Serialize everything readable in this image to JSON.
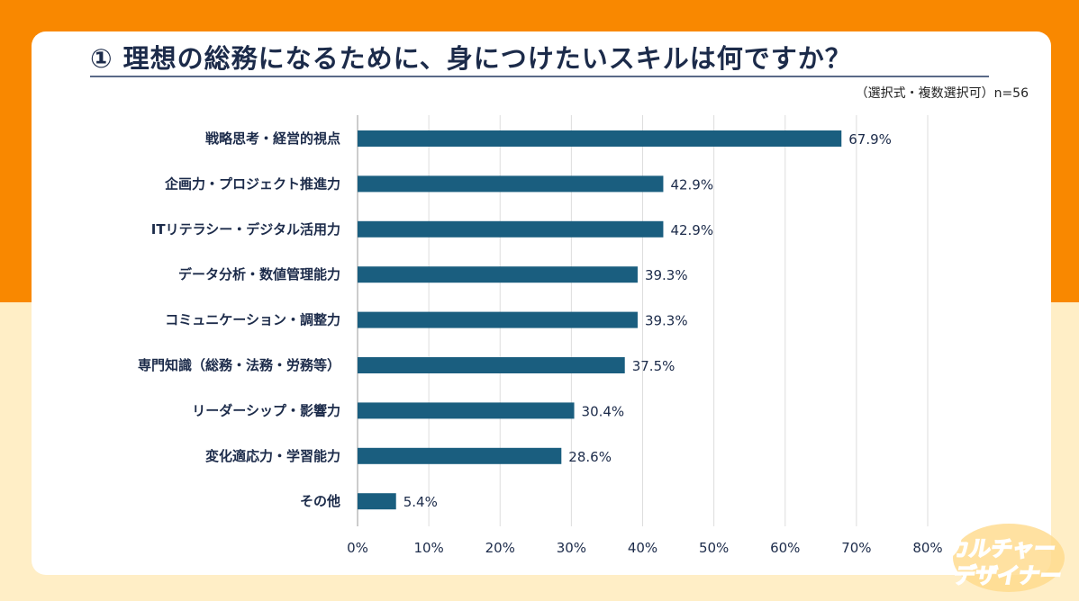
{
  "header": {
    "title": "① 理想の総務になるために、身につけたいスキルは何ですか？",
    "subtitle": "（選択式・複数選択可）n=56"
  },
  "logo": {
    "text": "カルチャーデザイナー"
  },
  "colors": {
    "bar": "#1A5E7F",
    "top_background": "#F98800",
    "bottom_background": "#FFEEC6"
  },
  "chart_data": {
    "type": "bar",
    "orientation": "horizontal",
    "categories": [
      "戦略思考・経営的視点",
      "企画力・プロジェクト推進力",
      "ITリテラシー・デジタル活用力",
      "データ分析・数値管理能力",
      "コミュニケーション・調整力",
      "専門知識（総務・法務・労務等）",
      "リーダーシップ・影響力",
      "変化適応力・学習能力",
      "その他"
    ],
    "values": [
      67.9,
      42.9,
      42.9,
      39.3,
      39.3,
      37.5,
      30.4,
      28.6,
      5.4
    ],
    "value_labels": [
      "67.9%",
      "42.9%",
      "42.9%",
      "39.3%",
      "39.3%",
      "37.5%",
      "30.4%",
      "28.6%",
      "5.4%"
    ],
    "xlim": [
      0,
      80
    ],
    "ticks": [
      "0%",
      "10%",
      "20%",
      "30%",
      "40%",
      "50%",
      "60%",
      "70%",
      "80%"
    ],
    "grid": true,
    "legend": "none"
  }
}
